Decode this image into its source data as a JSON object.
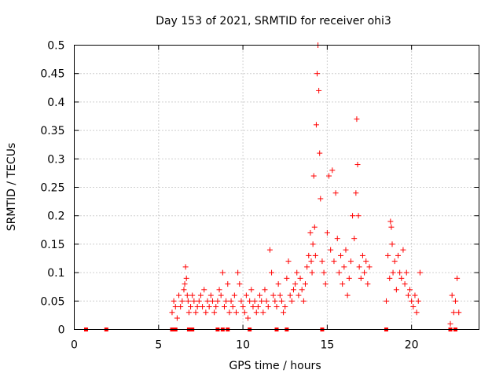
{
  "chart_data": {
    "type": "scatter",
    "title": "Day 153 of 2021, SRMTID for receiver ohi3",
    "xlabel": "GPS time / hours",
    "ylabel": "SRMTID / TECUs",
    "xlim": [
      0,
      24
    ],
    "ylim": [
      0,
      0.5
    ],
    "x_ticks": [
      0,
      5,
      10,
      15,
      20
    ],
    "x_tick_labels": [
      "0",
      "5",
      "10",
      "15",
      "20"
    ],
    "y_ticks": [
      0,
      0.05,
      0.1,
      0.15,
      0.2,
      0.25,
      0.3,
      0.35,
      0.4,
      0.45,
      0.5
    ],
    "y_tick_labels": [
      "0",
      "0.05",
      "0.1",
      "0.15",
      "0.2",
      "0.25",
      "0.3",
      "0.35",
      "0.4",
      "0.45",
      "0.5"
    ],
    "grid": true,
    "marker_color": "#ff0000",
    "zero_markers": {
      "description_marker": "square",
      "x": [
        0.7,
        1.9,
        5.8,
        6.0,
        6.8,
        7.0,
        8.5,
        8.8,
        9.1,
        10.4,
        12.0,
        12.6,
        14.7,
        18.5,
        22.3,
        22.6
      ]
    },
    "series": [
      {
        "name": "SRMTID",
        "marker": "plus",
        "x": [
          5.8,
          5.9,
          6.0,
          6.1,
          6.2,
          6.3,
          6.4,
          6.5,
          6.55,
          6.6,
          6.65,
          6.7,
          6.75,
          6.8,
          6.9,
          7.0,
          7.1,
          7.2,
          7.3,
          7.4,
          7.5,
          7.6,
          7.7,
          7.8,
          7.9,
          8.0,
          8.1,
          8.2,
          8.3,
          8.4,
          8.5,
          8.6,
          8.7,
          8.8,
          8.9,
          9.0,
          9.1,
          9.2,
          9.3,
          9.4,
          9.5,
          9.6,
          9.7,
          9.8,
          9.9,
          10.0,
          10.1,
          10.2,
          10.3,
          10.4,
          10.5,
          10.6,
          10.7,
          10.8,
          10.9,
          11.0,
          11.1,
          11.2,
          11.3,
          11.4,
          11.5,
          11.6,
          11.7,
          11.8,
          11.9,
          12.0,
          12.1,
          12.2,
          12.3,
          12.4,
          12.5,
          12.6,
          12.7,
          12.8,
          12.9,
          13.0,
          13.1,
          13.2,
          13.3,
          13.4,
          13.5,
          13.6,
          13.7,
          13.8,
          13.9,
          14.0,
          14.05,
          14.1,
          14.15,
          14.2,
          14.25,
          14.3,
          14.35,
          14.4,
          14.45,
          14.5,
          14.55,
          14.6,
          14.7,
          14.8,
          14.9,
          15.0,
          15.1,
          15.2,
          15.3,
          15.4,
          15.5,
          15.6,
          15.7,
          15.8,
          15.9,
          16.0,
          16.1,
          16.2,
          16.3,
          16.4,
          16.5,
          16.6,
          16.7,
          16.75,
          16.8,
          16.85,
          16.9,
          17.0,
          17.1,
          17.2,
          17.3,
          17.4,
          17.5,
          18.5,
          18.6,
          18.7,
          18.75,
          18.8,
          18.85,
          18.9,
          19.0,
          19.1,
          19.2,
          19.3,
          19.4,
          19.5,
          19.6,
          19.7,
          19.8,
          19.9,
          20.0,
          20.1,
          20.2,
          20.3,
          20.4,
          20.5,
          22.3,
          22.4,
          22.5,
          22.6,
          22.7,
          22.8
        ],
        "y": [
          0.03,
          0.05,
          0.04,
          0.02,
          0.06,
          0.04,
          0.05,
          0.07,
          0.08,
          0.11,
          0.09,
          0.06,
          0.05,
          0.03,
          0.04,
          0.06,
          0.05,
          0.03,
          0.04,
          0.05,
          0.06,
          0.04,
          0.07,
          0.03,
          0.05,
          0.04,
          0.06,
          0.05,
          0.03,
          0.04,
          0.05,
          0.07,
          0.06,
          0.1,
          0.04,
          0.05,
          0.08,
          0.03,
          0.05,
          0.04,
          0.06,
          0.03,
          0.1,
          0.08,
          0.05,
          0.04,
          0.03,
          0.06,
          0.02,
          0.05,
          0.07,
          0.04,
          0.05,
          0.03,
          0.04,
          0.06,
          0.05,
          0.03,
          0.07,
          0.05,
          0.04,
          0.14,
          0.1,
          0.06,
          0.05,
          0.04,
          0.08,
          0.06,
          0.05,
          0.03,
          0.04,
          0.09,
          0.12,
          0.06,
          0.05,
          0.07,
          0.08,
          0.1,
          0.06,
          0.09,
          0.07,
          0.05,
          0.08,
          0.11,
          0.13,
          0.17,
          0.12,
          0.1,
          0.15,
          0.27,
          0.18,
          0.13,
          0.36,
          0.45,
          0.5,
          0.42,
          0.31,
          0.23,
          0.12,
          0.1,
          0.08,
          0.17,
          0.27,
          0.14,
          0.28,
          0.12,
          0.24,
          0.16,
          0.1,
          0.13,
          0.08,
          0.11,
          0.14,
          0.06,
          0.09,
          0.12,
          0.2,
          0.16,
          0.24,
          0.37,
          0.29,
          0.2,
          0.11,
          0.09,
          0.13,
          0.1,
          0.12,
          0.08,
          0.11,
          0.05,
          0.13,
          0.09,
          0.19,
          0.18,
          0.15,
          0.1,
          0.12,
          0.07,
          0.13,
          0.1,
          0.09,
          0.14,
          0.08,
          0.1,
          0.06,
          0.07,
          0.05,
          0.04,
          0.06,
          0.03,
          0.05,
          0.1,
          0.01,
          0.06,
          0.03,
          0.05,
          0.09,
          0.03
        ]
      }
    ]
  }
}
